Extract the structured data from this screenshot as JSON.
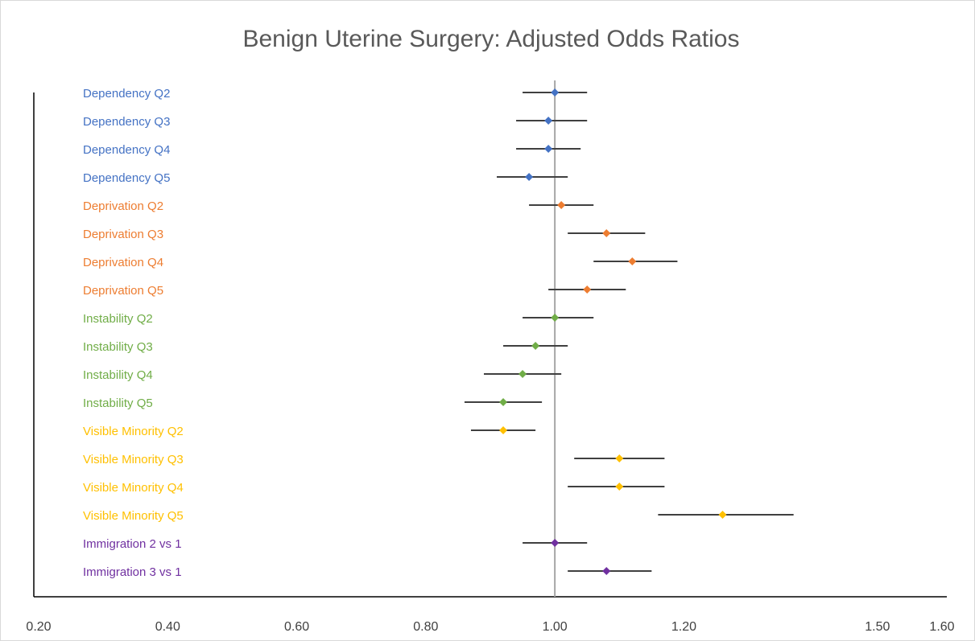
{
  "chart_data": {
    "type": "forest",
    "title": "Benign Uterine Surgery: Adjusted Odds Ratios",
    "categories": [
      "Dependency Q2",
      "Dependency Q3",
      "Dependency Q4",
      "Dependency Q5",
      "Deprivation Q2",
      "Deprivation Q3",
      "Deprivation Q4",
      "Deprivation Q5",
      "Instability Q2",
      "Instability Q3",
      "Instability Q4",
      "Instability Q5",
      "Visible Minority Q2",
      "Visible Minority Q3",
      "Visible Minority Q4",
      "Visible Minority Q5",
      "Immigration 2 vs 1",
      "Immigration 3 vs 1"
    ],
    "values": [
      1.0,
      0.99,
      0.99,
      0.96,
      1.01,
      1.08,
      1.12,
      1.05,
      1.0,
      0.97,
      0.95,
      0.92,
      0.92,
      1.1,
      1.1,
      1.26,
      1.0,
      1.08
    ],
    "lower": [
      0.95,
      0.94,
      0.94,
      0.91,
      0.96,
      1.02,
      1.06,
      0.99,
      0.95,
      0.92,
      0.89,
      0.86,
      0.87,
      1.03,
      1.02,
      1.16,
      0.95,
      1.02
    ],
    "upper": [
      1.05,
      1.05,
      1.04,
      1.02,
      1.06,
      1.14,
      1.19,
      1.11,
      1.06,
      1.02,
      1.01,
      0.98,
      0.97,
      1.17,
      1.17,
      1.37,
      1.05,
      1.15
    ],
    "colors": [
      "#4472c4",
      "#4472c4",
      "#4472c4",
      "#4472c4",
      "#ed7d31",
      "#ed7d31",
      "#ed7d31",
      "#ed7d31",
      "#70ad47",
      "#70ad47",
      "#70ad47",
      "#70ad47",
      "#ffc000",
      "#ffc000",
      "#ffc000",
      "#ffc000",
      "#7030a0",
      "#7030a0"
    ],
    "reference_line": 1,
    "xlim": [
      0.2,
      1.6
    ],
    "xticks": [
      {
        "value": 0.2,
        "label": "0.20"
      },
      {
        "value": 0.4,
        "label": "0.40"
      },
      {
        "value": 0.6,
        "label": "0.60"
      },
      {
        "value": 0.8,
        "label": "0.80"
      },
      {
        "value": 1.0,
        "label": "1.00"
      },
      {
        "value": 1.2,
        "label": "1.20"
      },
      {
        "value": 1.5,
        "label": "1.50"
      },
      {
        "value": 1.6,
        "label": "1.60"
      }
    ]
  }
}
